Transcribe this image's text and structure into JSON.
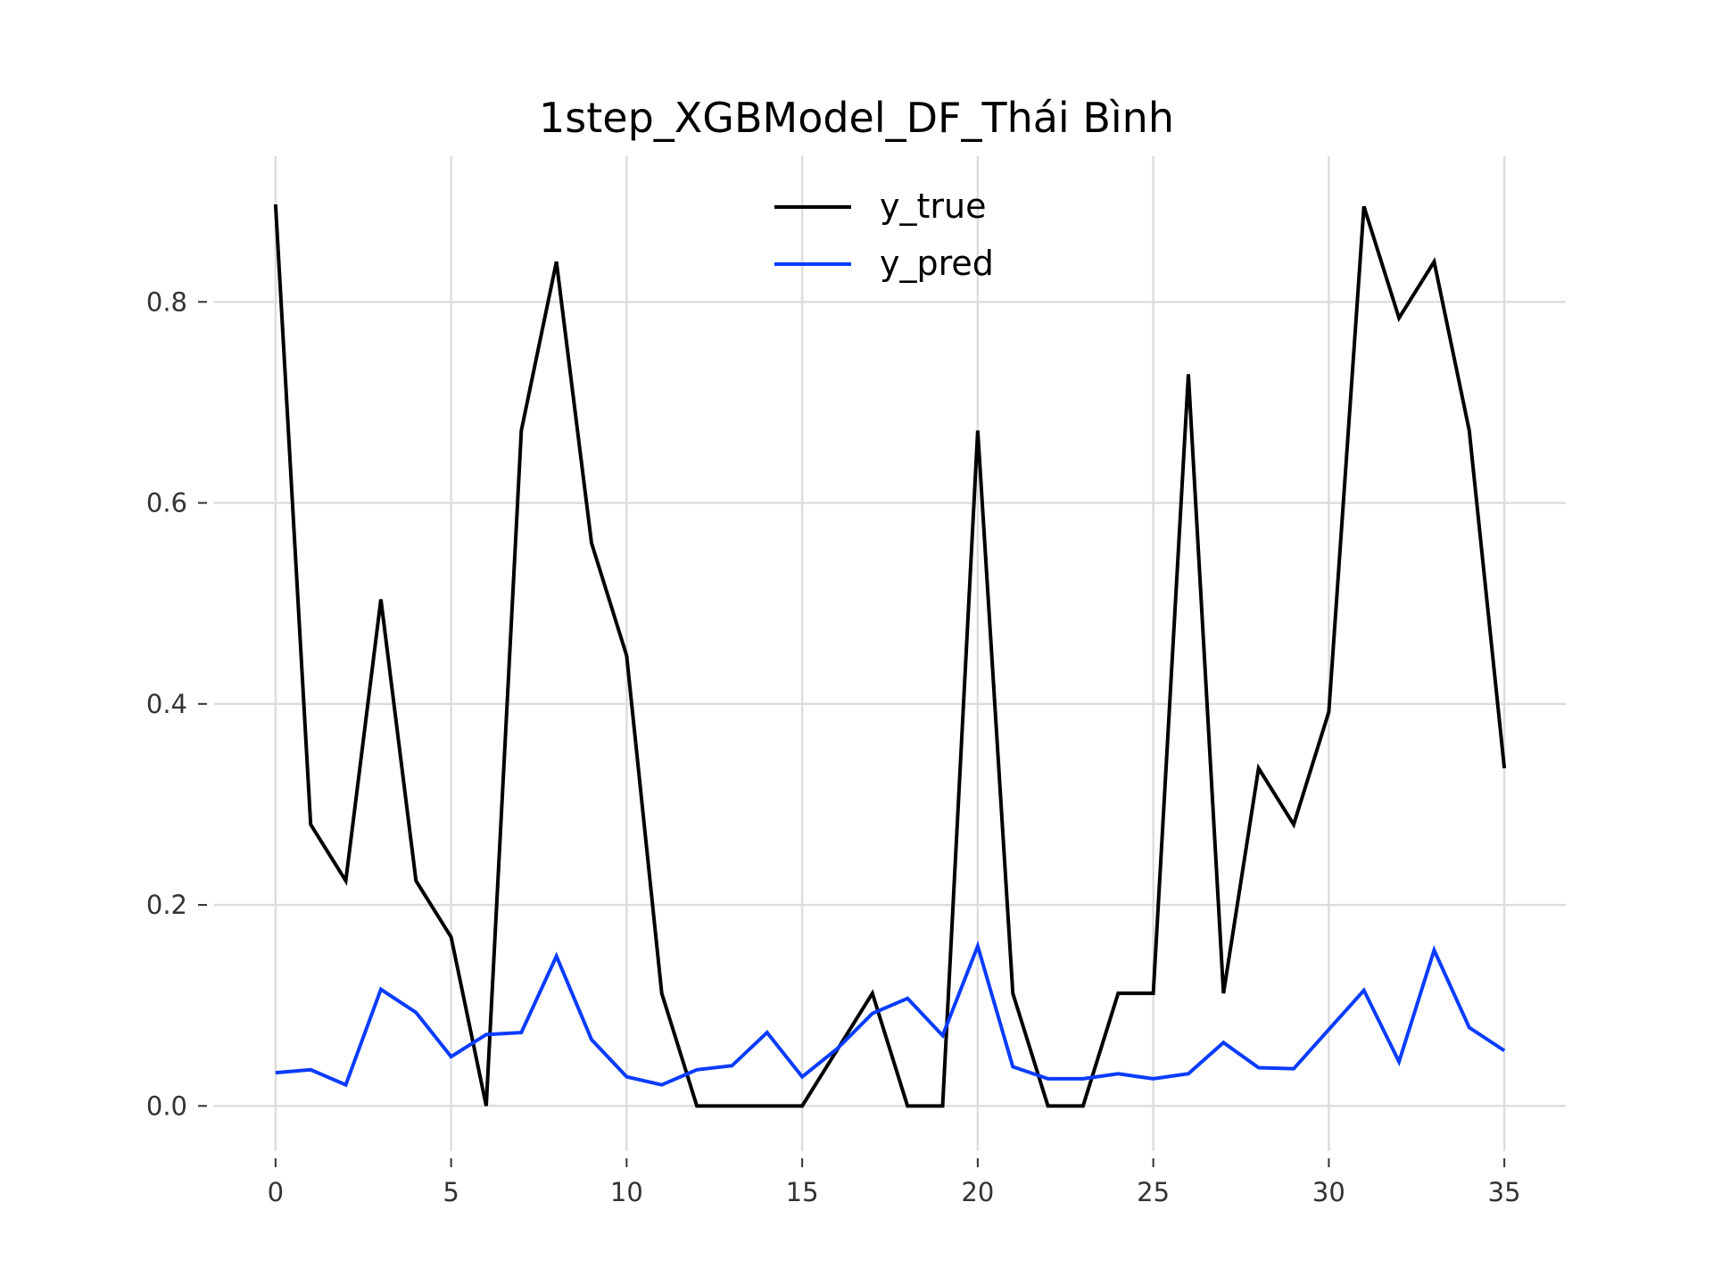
{
  "chart_data": {
    "type": "line",
    "title": "1step_XGBModel_DF_Thái Bình",
    "xlabel": "",
    "ylabel": "",
    "xlim": [
      -1.75,
      36.75
    ],
    "ylim": [
      -0.045,
      0.945
    ],
    "xticks": [
      0,
      5,
      10,
      15,
      20,
      25,
      30,
      35
    ],
    "xtick_labels": [
      "0",
      "5",
      "10",
      "15",
      "20",
      "25",
      "30",
      "35"
    ],
    "yticks": [
      0.0,
      0.2,
      0.4,
      0.6,
      0.8
    ],
    "ytick_labels": [
      "0.0",
      "0.2",
      "0.4",
      "0.6",
      "0.8"
    ],
    "grid": true,
    "legend_position": "top-center",
    "x": [
      0,
      1,
      2,
      3,
      4,
      5,
      6,
      7,
      8,
      9,
      10,
      11,
      12,
      13,
      14,
      15,
      16,
      17,
      18,
      19,
      20,
      21,
      22,
      23,
      24,
      25,
      26,
      27,
      28,
      29,
      30,
      31,
      32,
      33,
      34,
      35
    ],
    "series": [
      {
        "name": "y_true",
        "color": "#000000",
        "values": [
          0.897,
          0.28,
          0.224,
          0.504,
          0.224,
          0.168,
          0.0,
          0.672,
          0.84,
          0.56,
          0.448,
          0.112,
          0.0,
          0.0,
          0.0,
          0.0,
          0.056,
          0.112,
          0.0,
          0.0,
          0.672,
          0.112,
          0.0,
          0.0,
          0.112,
          0.112,
          0.728,
          0.112,
          0.336,
          0.28,
          0.392,
          0.895,
          0.784,
          0.84,
          0.672,
          0.336
        ]
      },
      {
        "name": "y_pred",
        "color": "#0a3cff",
        "values": [
          0.033,
          0.036,
          0.021,
          0.116,
          0.093,
          0.049,
          0.071,
          0.073,
          0.149,
          0.066,
          0.029,
          0.021,
          0.036,
          0.04,
          0.073,
          0.029,
          0.057,
          0.092,
          0.107,
          0.07,
          0.159,
          0.039,
          0.027,
          0.027,
          0.032,
          0.027,
          0.032,
          0.063,
          0.038,
          0.037,
          0.076,
          0.115,
          0.044,
          0.155,
          0.078,
          0.055
        ]
      }
    ]
  }
}
